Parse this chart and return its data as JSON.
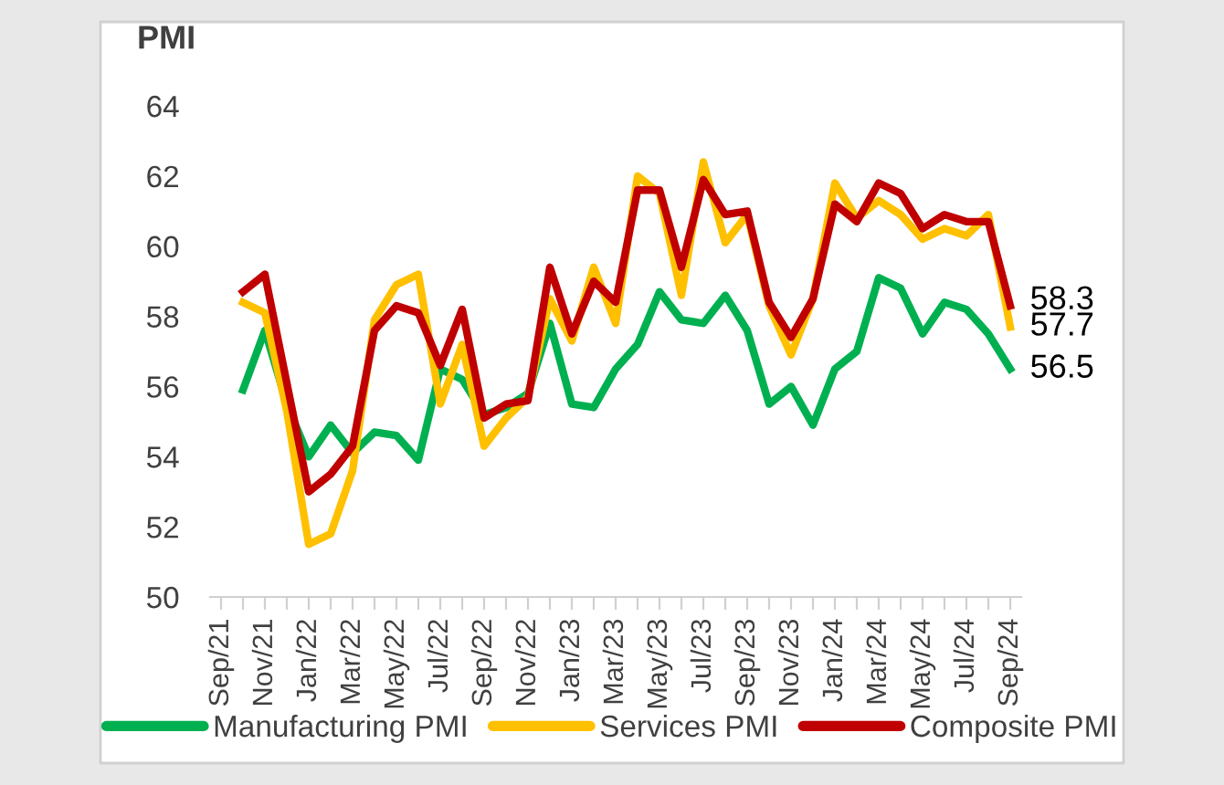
{
  "chart_data": {
    "type": "line",
    "title": "PMI",
    "categories": [
      "Sep/21",
      null,
      "Nov/21",
      null,
      "Jan/22",
      null,
      "Mar/22",
      null,
      "May/22",
      null,
      "Jul/22",
      null,
      "Sep/22",
      null,
      "Nov/22",
      null,
      "Jan/23",
      null,
      "Mar/23",
      null,
      "May/23",
      null,
      "Jul/23",
      null,
      "Sep/23",
      null,
      "Nov/23",
      null,
      "Jan/24",
      null,
      "Mar/24",
      null,
      "May/24",
      null,
      "Jul/24",
      null,
      "Sep/24"
    ],
    "series": [
      {
        "name": "Manufacturing PMI",
        "color": "#00b050",
        "values": [
          null,
          55.9,
          57.6,
          55.5,
          54.0,
          54.9,
          54.1,
          54.7,
          54.6,
          53.9,
          56.5,
          56.2,
          55.2,
          55.4,
          55.8,
          57.8,
          55.5,
          55.4,
          56.5,
          57.2,
          58.7,
          57.9,
          57.8,
          58.6,
          57.6,
          55.5,
          56.0,
          54.9,
          56.5,
          57.0,
          59.1,
          58.8,
          57.5,
          58.4,
          58.2,
          57.5,
          56.5
        ],
        "value_labels": [
          null,
          null,
          null,
          null,
          null,
          null,
          null,
          null,
          null,
          null,
          null,
          null,
          null,
          null,
          null,
          null,
          null,
          null,
          null,
          null,
          null,
          null,
          null,
          null,
          null,
          null,
          null,
          null,
          null,
          null,
          null,
          null,
          null,
          null,
          null,
          null,
          "56.5"
        ]
      },
      {
        "name": "Services PMI",
        "color": "#ffc000",
        "values": [
          null,
          58.4,
          58.1,
          55.3,
          51.5,
          51.8,
          53.6,
          57.9,
          58.9,
          59.2,
          55.5,
          57.2,
          54.3,
          55.1,
          55.7,
          58.5,
          57.3,
          59.4,
          57.8,
          62.0,
          61.5,
          58.6,
          62.4,
          60.1,
          60.9,
          58.3,
          56.9,
          58.5,
          61.8,
          60.8,
          61.3,
          60.9,
          60.2,
          60.5,
          60.3,
          60.9,
          57.7
        ],
        "value_labels": [
          null,
          null,
          null,
          null,
          null,
          null,
          null,
          null,
          null,
          null,
          null,
          null,
          null,
          null,
          null,
          null,
          null,
          null,
          null,
          null,
          null,
          null,
          null,
          null,
          null,
          null,
          null,
          null,
          null,
          null,
          null,
          null,
          null,
          null,
          null,
          null,
          "57.7"
        ]
      },
      {
        "name": "Composite PMI",
        "color": "#c00000",
        "values": [
          null,
          58.7,
          59.2,
          56.1,
          53.0,
          53.5,
          54.3,
          57.6,
          58.3,
          58.1,
          56.6,
          58.2,
          55.1,
          55.5,
          55.6,
          59.4,
          57.5,
          59.0,
          58.4,
          61.6,
          61.6,
          59.4,
          61.9,
          60.9,
          61.0,
          58.4,
          57.4,
          58.5,
          61.2,
          60.7,
          61.8,
          61.5,
          60.5,
          60.9,
          60.7,
          60.7,
          58.3
        ],
        "value_labels": [
          null,
          null,
          null,
          null,
          null,
          null,
          null,
          null,
          null,
          null,
          null,
          null,
          null,
          null,
          null,
          null,
          null,
          null,
          null,
          null,
          null,
          null,
          null,
          null,
          null,
          null,
          null,
          null,
          null,
          null,
          null,
          null,
          null,
          null,
          null,
          null,
          "58.3"
        ]
      }
    ],
    "ylim": [
      50,
      64
    ],
    "yticks": [
      50,
      52,
      54,
      56,
      58,
      60,
      62,
      64
    ],
    "grid": false,
    "legend": "bottom",
    "marker": "none",
    "line_style": "solid"
  }
}
